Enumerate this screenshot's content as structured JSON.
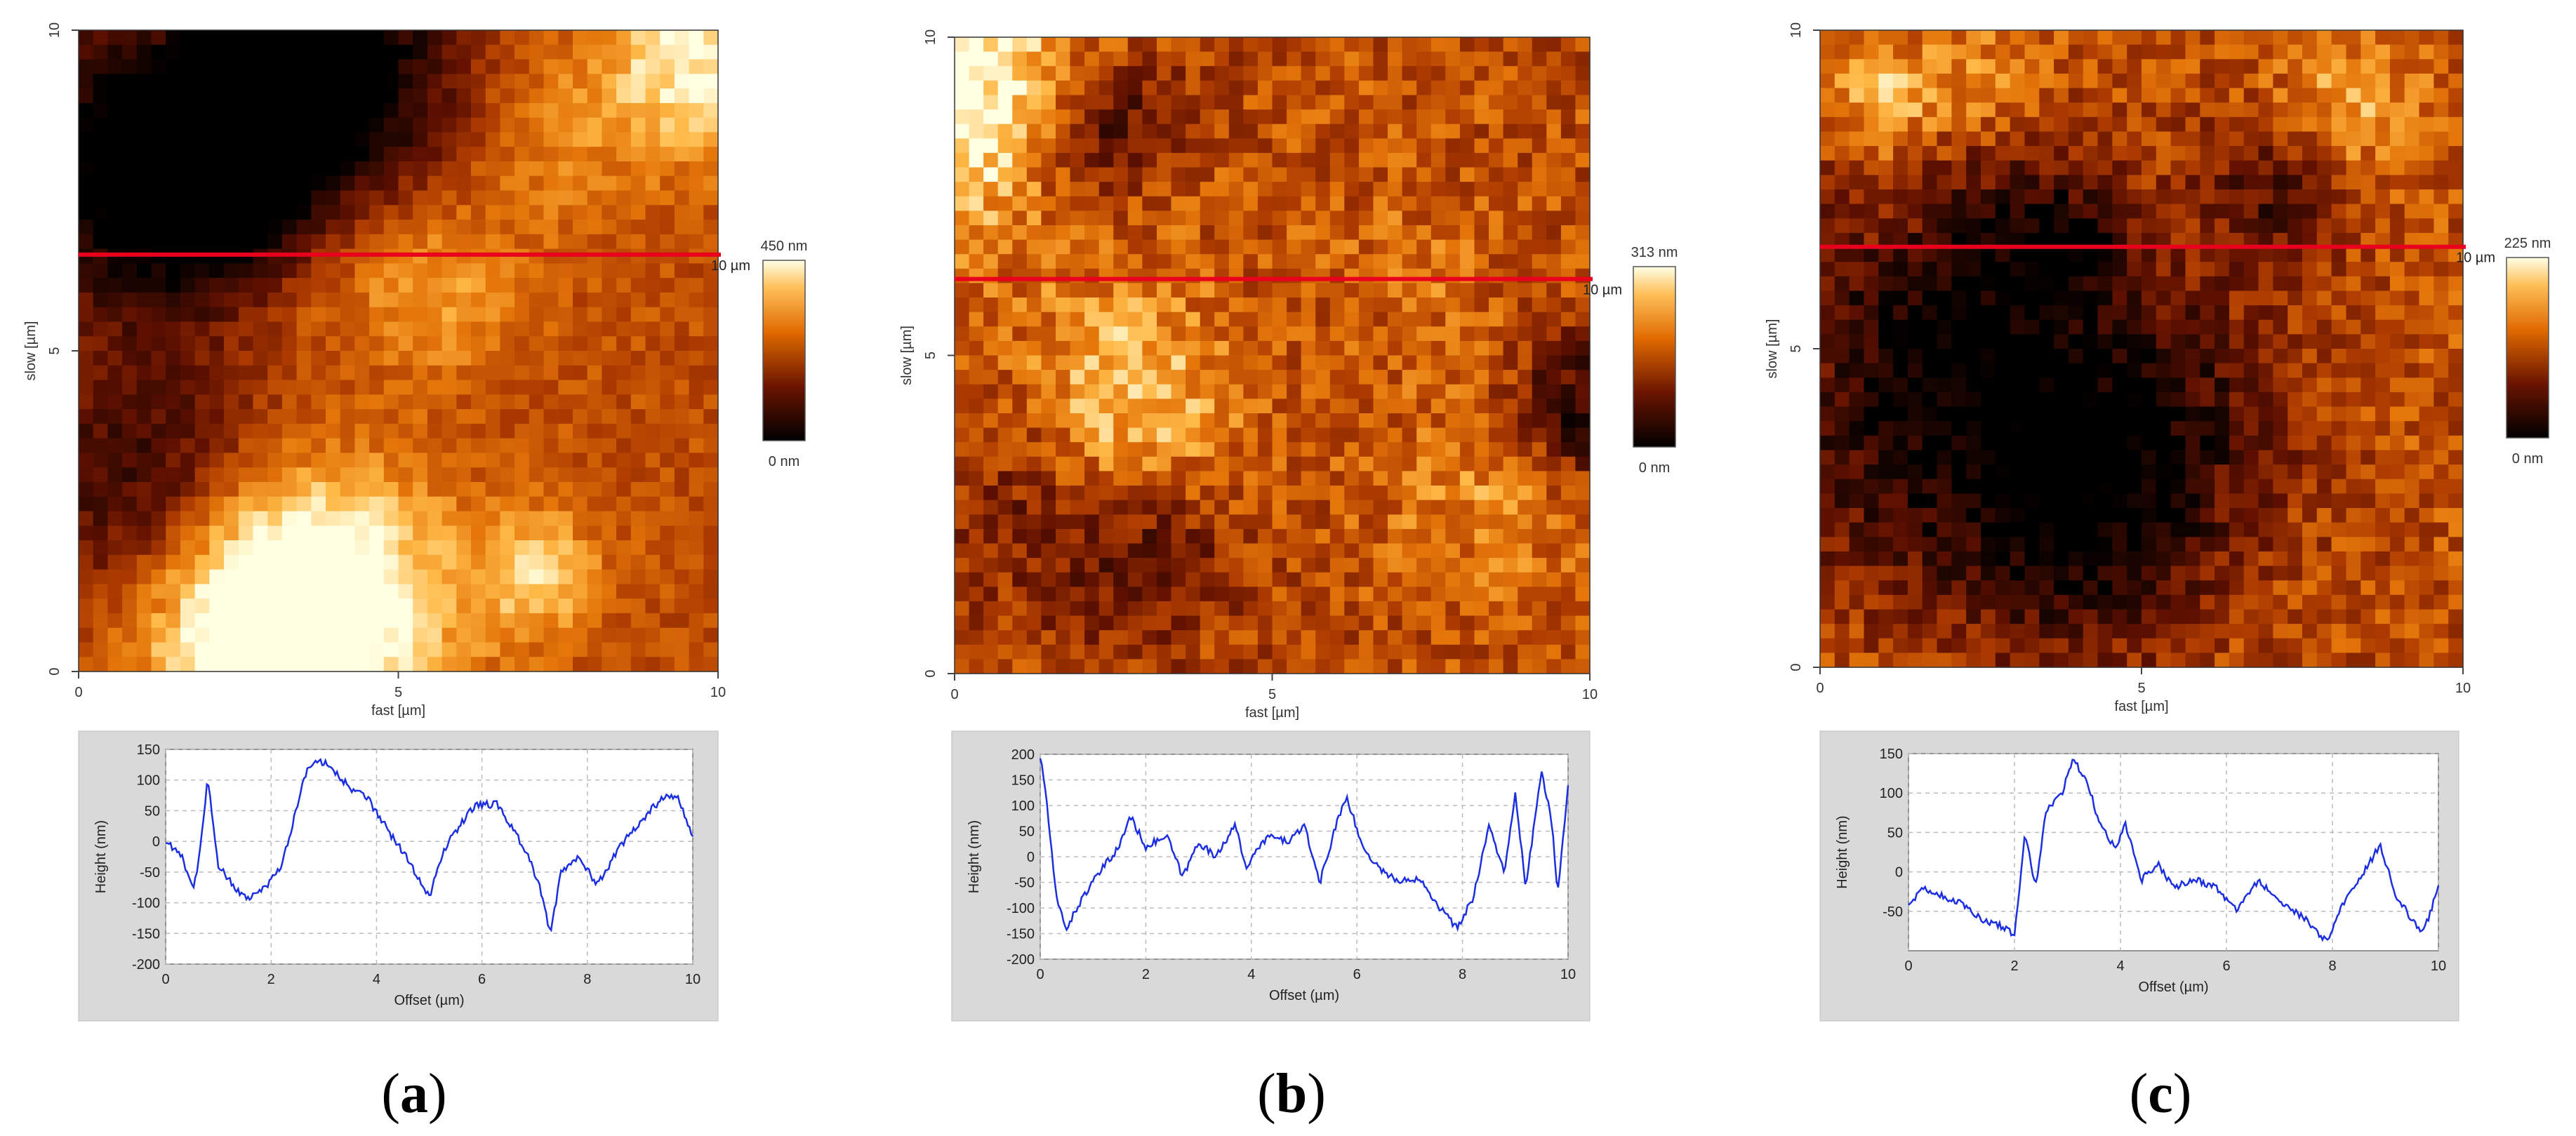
{
  "figure": {
    "panels": [
      {
        "id": "a",
        "label_open": "(",
        "label_letter": "a",
        "label_close": ")",
        "image": {
          "x_label": "fast [µm]",
          "y_label": "slow [µm]",
          "x_ticks": [
            "0",
            "5",
            "10"
          ],
          "y_ticks": [
            "0",
            "5",
            "10"
          ],
          "x_range": [
            0,
            10
          ],
          "y_range": [
            0,
            10
          ],
          "line_y": 6.5,
          "line_end_label": "10 µm",
          "colorbar_max": "450 nm",
          "colorbar_min": "0 nm",
          "palette": "afm-orange",
          "seed": 11
        },
        "profile": {
          "x_label": "Offset (µm)",
          "y_label": "Height (nm)",
          "x_ticks": [
            "0",
            "2",
            "4",
            "6",
            "8",
            "10"
          ],
          "y_ticks": [
            "-200",
            "-150",
            "-100",
            "-50",
            "0",
            "50",
            "100",
            "150"
          ],
          "x_range": [
            0,
            10
          ],
          "y_range": [
            -200,
            150
          ],
          "points": [
            [
              0,
              0
            ],
            [
              0.3,
              -20
            ],
            [
              0.5,
              -75
            ],
            [
              0.6,
              -55
            ],
            [
              0.8,
              105
            ],
            [
              1.0,
              -40
            ],
            [
              1.3,
              -75
            ],
            [
              1.6,
              -95
            ],
            [
              2.0,
              -65
            ],
            [
              2.2,
              -40
            ],
            [
              2.5,
              60
            ],
            [
              2.7,
              125
            ],
            [
              3.0,
              130
            ],
            [
              3.3,
              105
            ],
            [
              3.6,
              80
            ],
            [
              3.8,
              75
            ],
            [
              4.2,
              20
            ],
            [
              4.6,
              -30
            ],
            [
              5.0,
              -90
            ],
            [
              5.3,
              -10
            ],
            [
              5.6,
              30
            ],
            [
              5.9,
              60
            ],
            [
              6.3,
              60
            ],
            [
              6.6,
              20
            ],
            [
              6.9,
              -30
            ],
            [
              7.1,
              -75
            ],
            [
              7.3,
              -150
            ],
            [
              7.5,
              -50
            ],
            [
              7.8,
              -25
            ],
            [
              8.2,
              -70
            ],
            [
              8.6,
              -10
            ],
            [
              9.0,
              30
            ],
            [
              9.4,
              70
            ],
            [
              9.7,
              75
            ],
            [
              10.0,
              10
            ]
          ]
        }
      },
      {
        "id": "b",
        "label_open": "(",
        "label_letter": "b",
        "label_close": ")",
        "image": {
          "x_label": "fast [µm]",
          "y_label": "slow [µm]",
          "x_ticks": [
            "0",
            "5",
            "10"
          ],
          "y_ticks": [
            "0",
            "5",
            "10"
          ],
          "x_range": [
            0,
            10
          ],
          "y_range": [
            0,
            10
          ],
          "line_y": 6.2,
          "line_end_label": "10 µm",
          "colorbar_max": "313 nm",
          "colorbar_min": "0 nm",
          "palette": "afm-orange",
          "seed": 27
        },
        "profile": {
          "x_label": "Offset (µm)",
          "y_label": "Height (nm)",
          "x_ticks": [
            "0",
            "2",
            "4",
            "6",
            "8",
            "10"
          ],
          "y_ticks": [
            "-200",
            "-150",
            "-100",
            "-50",
            "0",
            "50",
            "100",
            "150",
            "200"
          ],
          "x_range": [
            0,
            10
          ],
          "y_range": [
            -200,
            200
          ],
          "points": [
            [
              0,
              195
            ],
            [
              0.1,
              130
            ],
            [
              0.3,
              -80
            ],
            [
              0.5,
              -140
            ],
            [
              0.8,
              -80
            ],
            [
              1.2,
              -20
            ],
            [
              1.5,
              20
            ],
            [
              1.7,
              80
            ],
            [
              2.0,
              20
            ],
            [
              2.4,
              40
            ],
            [
              2.7,
              -40
            ],
            [
              3.0,
              30
            ],
            [
              3.3,
              0
            ],
            [
              3.7,
              60
            ],
            [
              3.9,
              -20
            ],
            [
              4.3,
              40
            ],
            [
              4.7,
              30
            ],
            [
              5.0,
              60
            ],
            [
              5.3,
              -50
            ],
            [
              5.6,
              60
            ],
            [
              5.8,
              120
            ],
            [
              6.1,
              20
            ],
            [
              6.4,
              -20
            ],
            [
              6.8,
              -50
            ],
            [
              7.2,
              -40
            ],
            [
              7.5,
              -90
            ],
            [
              7.9,
              -140
            ],
            [
              8.2,
              -80
            ],
            [
              8.5,
              60
            ],
            [
              8.8,
              -30
            ],
            [
              9.0,
              120
            ],
            [
              9.2,
              -60
            ],
            [
              9.5,
              170
            ],
            [
              9.7,
              60
            ],
            [
              9.8,
              -80
            ],
            [
              10.0,
              140
            ]
          ]
        }
      },
      {
        "id": "c",
        "label_open": "(",
        "label_letter": "c",
        "label_close": ")",
        "image": {
          "x_label": "fast [µm]",
          "y_label": "slow [µm]",
          "x_ticks": [
            "0",
            "5",
            "10"
          ],
          "y_ticks": [
            "0",
            "5",
            "10"
          ],
          "x_range": [
            0,
            10
          ],
          "y_range": [
            0,
            10
          ],
          "line_y": 6.6,
          "line_end_label": "10 µm",
          "colorbar_max": "225 nm",
          "colorbar_min": "0 nm",
          "palette": "afm-orange",
          "seed": 53
        },
        "profile": {
          "x_label": "Offset (µm)",
          "y_label": "Height (nm)",
          "x_ticks": [
            "0",
            "2",
            "4",
            "6",
            "8",
            "10"
          ],
          "y_ticks": [
            "-50",
            "0",
            "50",
            "100",
            "150"
          ],
          "x_range": [
            0,
            10
          ],
          "y_range": [
            -100,
            150
          ],
          "points": [
            [
              0,
              -40
            ],
            [
              0.3,
              -20
            ],
            [
              0.6,
              -30
            ],
            [
              1.0,
              -40
            ],
            [
              1.4,
              -60
            ],
            [
              1.8,
              -70
            ],
            [
              2.0,
              -80
            ],
            [
              2.2,
              50
            ],
            [
              2.4,
              -20
            ],
            [
              2.6,
              80
            ],
            [
              2.9,
              100
            ],
            [
              3.1,
              145
            ],
            [
              3.4,
              110
            ],
            [
              3.6,
              60
            ],
            [
              3.9,
              30
            ],
            [
              4.1,
              60
            ],
            [
              4.4,
              -10
            ],
            [
              4.7,
              10
            ],
            [
              5.0,
              -20
            ],
            [
              5.4,
              -10
            ],
            [
              5.8,
              -20
            ],
            [
              6.2,
              -50
            ],
            [
              6.6,
              -10
            ],
            [
              7.0,
              -40
            ],
            [
              7.5,
              -60
            ],
            [
              7.9,
              -90
            ],
            [
              8.2,
              -40
            ],
            [
              8.6,
              0
            ],
            [
              8.9,
              35
            ],
            [
              9.2,
              -30
            ],
            [
              9.5,
              -60
            ],
            [
              9.7,
              -80
            ],
            [
              10.0,
              -20
            ]
          ]
        }
      }
    ]
  },
  "chart_data": [
    {
      "type": "heatmap",
      "title": "(a)",
      "xlabel": "fast [µm]",
      "ylabel": "slow [µm]",
      "xlim": [
        0,
        10
      ],
      "ylim": [
        0,
        10
      ],
      "colorbar": {
        "min": "0 nm",
        "max": "450 nm"
      },
      "annotation": "10 µm"
    },
    {
      "type": "line",
      "title": "(a)",
      "xlabel": "Offset (µm)",
      "ylabel": "Height (nm)",
      "xlim": [
        0,
        10
      ],
      "ylim": [
        -200,
        150
      ],
      "grid": true
    },
    {
      "type": "heatmap",
      "title": "(b)",
      "xlabel": "fast [µm]",
      "ylabel": "slow [µm]",
      "xlim": [
        0,
        10
      ],
      "ylim": [
        0,
        10
      ],
      "colorbar": {
        "min": "0 nm",
        "max": "313 nm"
      },
      "annotation": "10 µm"
    },
    {
      "type": "line",
      "title": "(b)",
      "xlabel": "Offset (µm)",
      "ylabel": "Height (nm)",
      "xlim": [
        0,
        10
      ],
      "ylim": [
        -200,
        200
      ],
      "grid": true
    },
    {
      "type": "heatmap",
      "title": "(c)",
      "xlabel": "fast [µm]",
      "ylabel": "slow [µm]",
      "xlim": [
        0,
        10
      ],
      "ylim": [
        0,
        10
      ],
      "colorbar": {
        "min": "0 nm",
        "max": "225 nm"
      }
    },
    {
      "type": "line",
      "title": "(c)",
      "xlabel": "Offset (µm)",
      "ylabel": "Height (nm)",
      "xlim": [
        0,
        10
      ],
      "ylim": [
        -100,
        150
      ],
      "grid": true
    }
  ]
}
